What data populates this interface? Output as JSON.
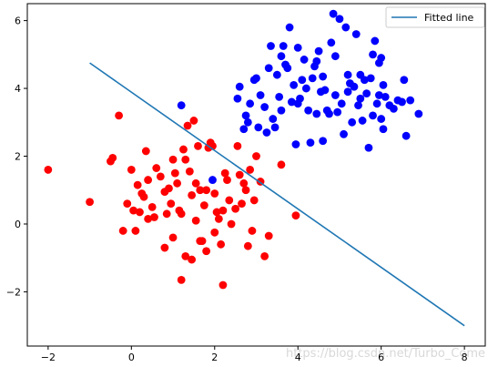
{
  "chart_data": {
    "type": "scatter",
    "title": "",
    "xlabel": "",
    "ylabel": "",
    "xlim": [
      -2.5,
      8.5
    ],
    "ylim": [
      -3.6,
      6.5
    ],
    "xticks": [
      -2,
      0,
      2,
      4,
      6,
      8
    ],
    "yticks": [
      -2,
      0,
      2,
      4,
      6
    ],
    "grid": false,
    "legend": {
      "placement": "top-right",
      "entries": [
        "Fitted line"
      ]
    },
    "colors": {
      "class_0": "#ff0000",
      "class_1": "#0000ff",
      "line": "#1f77b4"
    },
    "series": [
      {
        "kind": "scatter",
        "color": "#ff0000",
        "points": [
          [
            -2.0,
            1.6
          ],
          [
            -1.0,
            0.65
          ],
          [
            -0.5,
            1.85
          ],
          [
            -0.45,
            1.95
          ],
          [
            -0.3,
            3.2
          ],
          [
            -0.2,
            -0.2
          ],
          [
            -0.1,
            0.6
          ],
          [
            0.0,
            1.6
          ],
          [
            0.1,
            -0.2
          ],
          [
            0.2,
            0.35
          ],
          [
            0.3,
            0.8
          ],
          [
            0.35,
            2.15
          ],
          [
            0.4,
            1.3
          ],
          [
            0.5,
            0.5
          ],
          [
            0.6,
            1.65
          ],
          [
            0.7,
            1.4
          ],
          [
            0.8,
            0.95
          ],
          [
            0.9,
            1.05
          ],
          [
            0.95,
            0.6
          ],
          [
            1.0,
            1.9
          ],
          [
            1.05,
            1.5
          ],
          [
            1.1,
            1.2
          ],
          [
            1.15,
            0.4
          ],
          [
            1.2,
            0.3
          ],
          [
            1.25,
            2.2
          ],
          [
            1.3,
            1.9
          ],
          [
            1.35,
            2.9
          ],
          [
            1.4,
            1.55
          ],
          [
            1.45,
            0.85
          ],
          [
            1.5,
            3.05
          ],
          [
            1.55,
            0.1
          ],
          [
            1.6,
            2.3
          ],
          [
            1.65,
            1.0
          ],
          [
            1.7,
            -0.5
          ],
          [
            1.75,
            0.55
          ],
          [
            1.8,
            1.0
          ],
          [
            1.85,
            2.25
          ],
          [
            1.9,
            2.4
          ],
          [
            1.95,
            2.3
          ],
          [
            2.0,
            0.9
          ],
          [
            2.05,
            0.35
          ],
          [
            2.1,
            0.15
          ],
          [
            2.15,
            -0.6
          ],
          [
            2.2,
            0.4
          ],
          [
            2.25,
            1.5
          ],
          [
            2.3,
            1.3
          ],
          [
            2.4,
            0.0
          ],
          [
            2.5,
            0.45
          ],
          [
            2.55,
            2.3
          ],
          [
            2.6,
            1.45
          ],
          [
            2.65,
            0.6
          ],
          [
            2.7,
            1.2
          ],
          [
            2.75,
            1.0
          ],
          [
            2.8,
            -0.65
          ],
          [
            2.85,
            1.6
          ],
          [
            2.95,
            0.7
          ],
          [
            3.0,
            2.0
          ],
          [
            3.1,
            1.25
          ],
          [
            3.2,
            -0.95
          ],
          [
            3.3,
            -0.35
          ],
          [
            3.6,
            1.75
          ],
          [
            3.95,
            0.25
          ],
          [
            0.8,
            -0.7
          ],
          [
            1.0,
            -0.4
          ],
          [
            1.2,
            -1.65
          ],
          [
            1.3,
            -0.95
          ],
          [
            1.45,
            -1.05
          ],
          [
            1.65,
            -0.5
          ],
          [
            1.8,
            -0.8
          ],
          [
            2.0,
            -0.25
          ],
          [
            2.2,
            -1.8
          ],
          [
            0.4,
            0.15
          ],
          [
            0.25,
            0.9
          ],
          [
            0.55,
            0.2
          ],
          [
            0.85,
            0.3
          ],
          [
            1.55,
            1.2
          ],
          [
            2.35,
            0.7
          ],
          [
            0.15,
            1.15
          ],
          [
            0.05,
            0.4
          ],
          [
            2.9,
            -0.2
          ]
        ]
      },
      {
        "kind": "scatter",
        "color": "#0000ff",
        "points": [
          [
            1.2,
            3.5
          ],
          [
            1.95,
            1.3
          ],
          [
            2.55,
            3.7
          ],
          [
            2.6,
            4.05
          ],
          [
            2.7,
            2.8
          ],
          [
            2.75,
            3.2
          ],
          [
            2.8,
            3.0
          ],
          [
            2.85,
            3.55
          ],
          [
            2.95,
            4.25
          ],
          [
            3.0,
            4.3
          ],
          [
            3.1,
            3.8
          ],
          [
            3.2,
            3.45
          ],
          [
            3.25,
            2.7
          ],
          [
            3.3,
            4.6
          ],
          [
            3.35,
            5.25
          ],
          [
            3.4,
            3.1
          ],
          [
            3.45,
            2.85
          ],
          [
            3.5,
            4.4
          ],
          [
            3.55,
            3.75
          ],
          [
            3.6,
            4.95
          ],
          [
            3.65,
            5.25
          ],
          [
            3.7,
            4.7
          ],
          [
            3.75,
            4.6
          ],
          [
            3.8,
            5.8
          ],
          [
            3.85,
            3.6
          ],
          [
            3.9,
            4.1
          ],
          [
            3.95,
            2.35
          ],
          [
            4.0,
            5.2
          ],
          [
            4.05,
            3.7
          ],
          [
            4.1,
            4.25
          ],
          [
            4.15,
            4.85
          ],
          [
            4.2,
            4.0
          ],
          [
            4.25,
            3.35
          ],
          [
            4.3,
            2.4
          ],
          [
            4.35,
            4.3
          ],
          [
            4.4,
            4.65
          ],
          [
            4.45,
            3.25
          ],
          [
            4.5,
            5.1
          ],
          [
            4.55,
            3.9
          ],
          [
            4.6,
            4.35
          ],
          [
            4.65,
            3.95
          ],
          [
            4.7,
            3.35
          ],
          [
            4.75,
            3.25
          ],
          [
            4.8,
            5.35
          ],
          [
            4.85,
            6.2
          ],
          [
            4.9,
            4.95
          ],
          [
            4.95,
            3.3
          ],
          [
            5.0,
            6.05
          ],
          [
            5.05,
            3.55
          ],
          [
            5.1,
            2.65
          ],
          [
            5.15,
            5.8
          ],
          [
            5.2,
            4.4
          ],
          [
            5.25,
            4.15
          ],
          [
            5.3,
            3.0
          ],
          [
            5.35,
            4.05
          ],
          [
            5.4,
            5.6
          ],
          [
            5.45,
            3.5
          ],
          [
            5.5,
            4.4
          ],
          [
            5.55,
            3.05
          ],
          [
            5.6,
            4.25
          ],
          [
            5.65,
            3.85
          ],
          [
            5.7,
            2.25
          ],
          [
            5.75,
            4.3
          ],
          [
            5.8,
            3.2
          ],
          [
            5.85,
            5.4
          ],
          [
            5.9,
            3.55
          ],
          [
            5.95,
            4.75
          ],
          [
            6.0,
            3.1
          ],
          [
            6.05,
            4.1
          ],
          [
            6.1,
            3.75
          ],
          [
            6.2,
            3.5
          ],
          [
            6.3,
            3.4
          ],
          [
            6.4,
            3.65
          ],
          [
            6.5,
            3.6
          ],
          [
            6.55,
            4.25
          ],
          [
            6.6,
            2.6
          ],
          [
            6.7,
            3.65
          ],
          [
            6.9,
            3.25
          ],
          [
            5.8,
            5.0
          ],
          [
            6.0,
            4.9
          ],
          [
            5.5,
            3.7
          ],
          [
            4.6,
            2.45
          ],
          [
            4.0,
            3.55
          ],
          [
            3.6,
            3.35
          ],
          [
            5.2,
            3.9
          ],
          [
            4.9,
            3.8
          ],
          [
            3.05,
            2.85
          ],
          [
            4.45,
            4.8
          ],
          [
            5.95,
            3.8
          ],
          [
            6.05,
            2.8
          ]
        ]
      },
      {
        "kind": "line",
        "name": "Fitted line",
        "color": "#1f77b4",
        "x": [
          -1.0,
          8.0
        ],
        "y": [
          4.75,
          -3.0
        ]
      }
    ],
    "annotations": [
      "https://blog.csdn.net/Turbo_Come"
    ]
  }
}
